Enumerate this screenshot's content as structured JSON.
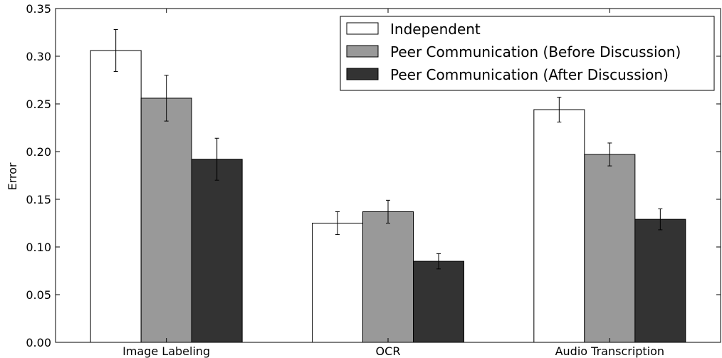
{
  "chart_data": {
    "type": "bar",
    "title": "",
    "xlabel": "",
    "ylabel": "Error",
    "ylim": [
      0,
      0.35
    ],
    "yticks": [
      "0.00",
      "0.05",
      "0.10",
      "0.15",
      "0.20",
      "0.25",
      "0.30",
      "0.35"
    ],
    "grid": false,
    "legend_position": "top-right",
    "categories": [
      "Image Labeling",
      "OCR",
      "Audio Transcription"
    ],
    "series": [
      {
        "name": "Independent",
        "color": "#ffffff",
        "values": [
          0.306,
          0.125,
          0.244
        ],
        "errors": [
          0.022,
          0.012,
          0.013
        ]
      },
      {
        "name": "Peer Communication (Before Discussion)",
        "color": "#999999",
        "values": [
          0.256,
          0.137,
          0.197
        ],
        "errors": [
          0.024,
          0.012,
          0.012
        ]
      },
      {
        "name": "Peer Communication (After Discussion)",
        "color": "#333333",
        "values": [
          0.192,
          0.085,
          0.129
        ],
        "errors": [
          0.022,
          0.008,
          0.011
        ]
      }
    ]
  }
}
